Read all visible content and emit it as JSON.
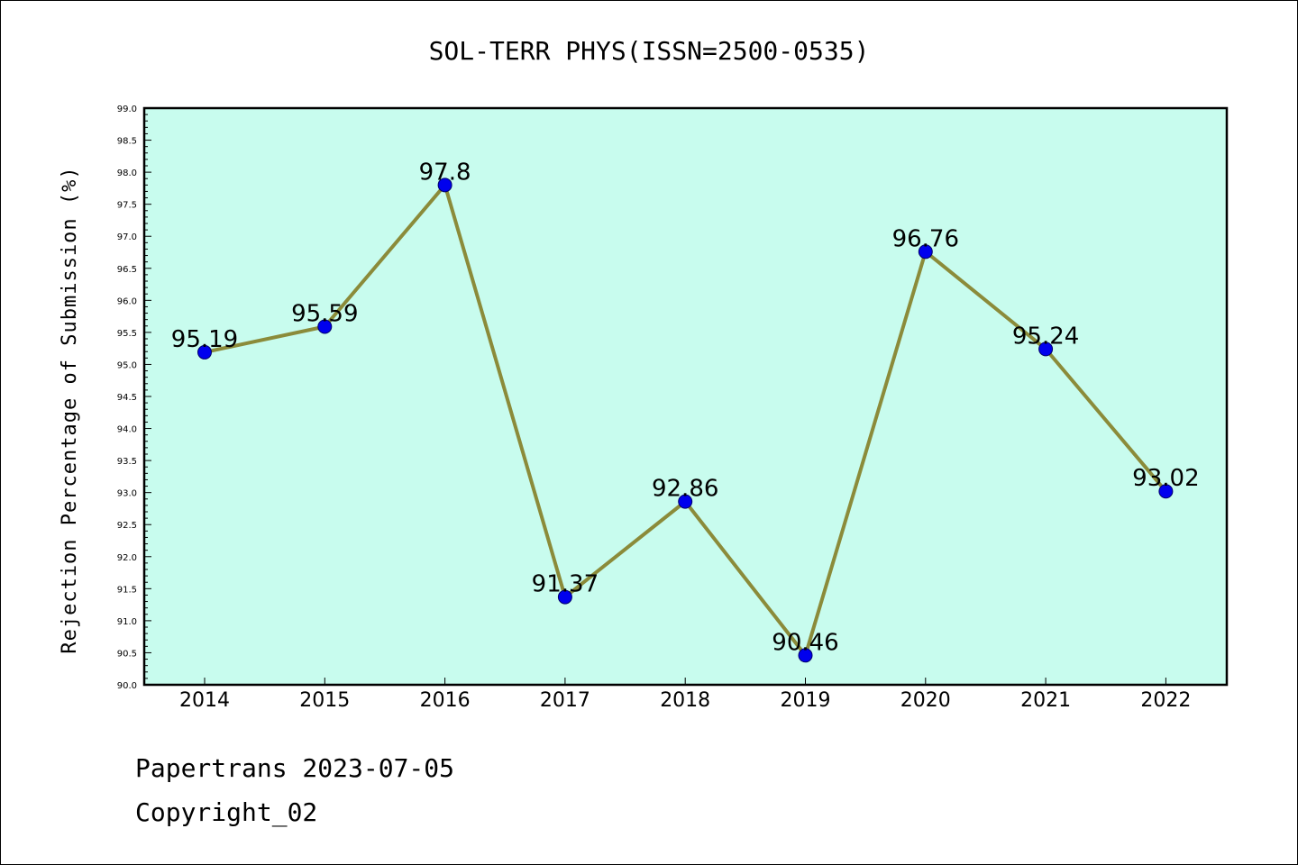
{
  "chart_data": {
    "type": "line",
    "title": "SOL-TERR PHYS(ISSN=2500-0535)",
    "xlabel": "",
    "ylabel": "Rejection Percentage of Submission (%)",
    "categories": [
      "2014",
      "2015",
      "2016",
      "2017",
      "2018",
      "2019",
      "2020",
      "2021",
      "2022"
    ],
    "values": [
      95.19,
      95.59,
      97.8,
      91.37,
      92.86,
      90.46,
      96.76,
      95.24,
      93.02
    ],
    "data_labels": [
      "95.19",
      "95.59",
      "97.8",
      "91.37",
      "92.86",
      "90.46",
      "96.76",
      "95.24",
      "93.02"
    ],
    "ylim": [
      90.0,
      99.0
    ],
    "yticks": [
      "90.0",
      "90.5",
      "91.0",
      "91.5",
      "92.0",
      "92.5",
      "93.0",
      "93.5",
      "94.0",
      "94.5",
      "95.0",
      "95.5",
      "96.0",
      "96.5",
      "97.0",
      "97.5",
      "98.0",
      "98.5",
      "99.0"
    ],
    "grid": false,
    "colors": {
      "plot_background": "#c8fcee",
      "line": "#8b8b3a",
      "marker": "#0000ee"
    }
  },
  "footer": {
    "line1": "Papertrans 2023-07-05",
    "line2": "Copyright_02"
  }
}
